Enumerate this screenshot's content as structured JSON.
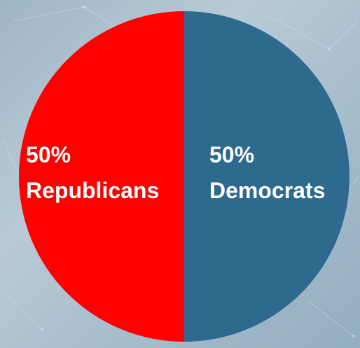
{
  "chart_data": {
    "type": "pie",
    "slices": [
      {
        "label": "Democrats",
        "value": 50,
        "value_label": "50%",
        "color": "#2e6a8e"
      },
      {
        "label": "Republicans",
        "value": 50,
        "value_label": "50%",
        "color": "#ff0000"
      }
    ],
    "start_angle": "12 o'clock",
    "direction": "clockwise",
    "legend": "none",
    "labels": "inside slices, white bold"
  },
  "colors": {
    "background": "#aec2cf"
  }
}
